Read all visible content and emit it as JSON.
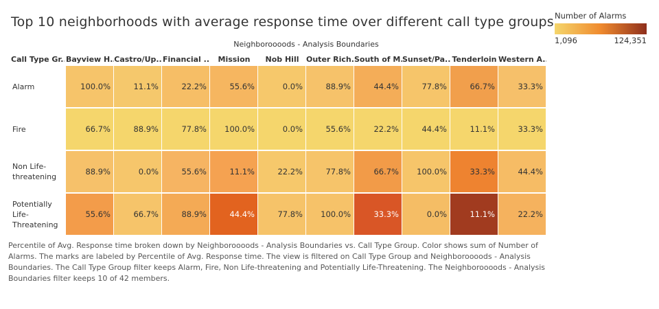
{
  "title": "Top 10 neighborhoods with average response time over different call type groups",
  "legend": {
    "title": "Number of Alarms",
    "min_label": "1,096",
    "max_label": "124,351"
  },
  "column_axis_title": "Neighboroooods - Analysis Boundaries",
  "row_header_title": "Call Type Gr..",
  "caption": "Percentile of Avg. Response time broken down by Neighboroooods - Analysis Boundaries vs. Call Type Group.  Color shows sum of Number of Alarms.  The marks are labeled by Percentile of Avg. Response time. The view is filtered on Call Type Group and Neighboroooods - Analysis Boundaries. The Call Type Group filter keeps Alarm, Fire, Non Life-threatening and Potentially Life-Threatening. The Neighboroooods - Analysis Boundaries filter keeps 10 of 42 members.",
  "chart_data": {
    "type": "heatmap",
    "title": "Top 10 neighborhoods with average response time over different call type groups",
    "xlabel": "Neighboroooods - Analysis Boundaries",
    "ylabel": "Call Type Gr..",
    "columns": [
      "Bayview H..",
      "Castro/Up..",
      "Financial ..",
      "Mission",
      "Nob Hill",
      "Outer Rich..",
      "South of M..",
      "Sunset/Pa..",
      "Tenderloin",
      "Western A.."
    ],
    "rows": [
      "Alarm",
      "Fire",
      "Non Life-threatening",
      "Potentially Life-Threatening"
    ],
    "row_display": [
      [
        "Alarm"
      ],
      [
        "Fire"
      ],
      [
        "Non Life-",
        "threatening"
      ],
      [
        "Potentially",
        "Life-",
        "Threatening"
      ]
    ],
    "labels": [
      [
        "100.0%",
        "11.1%",
        "22.2%",
        "55.6%",
        "0.0%",
        "88.9%",
        "44.4%",
        "77.8%",
        "66.7%",
        "33.3%"
      ],
      [
        "66.7%",
        "88.9%",
        "77.8%",
        "100.0%",
        "0.0%",
        "55.6%",
        "22.2%",
        "44.4%",
        "11.1%",
        "33.3%"
      ],
      [
        "88.9%",
        "0.0%",
        "55.6%",
        "11.1%",
        "22.2%",
        "77.8%",
        "66.7%",
        "100.0%",
        "33.3%",
        "44.4%"
      ],
      [
        "55.6%",
        "66.7%",
        "88.9%",
        "44.4%",
        "77.8%",
        "100.0%",
        "33.3%",
        "0.0%",
        "11.1%",
        "22.2%"
      ]
    ],
    "colors": [
      [
        "#f6c46a",
        "#f5c86c",
        "#f6be66",
        "#f6b660",
        "#f6c86b",
        "#f6c26a",
        "#f4ad58",
        "#f6c56a",
        "#f19f4c",
        "#f6c06a"
      ],
      [
        "#f5d66c",
        "#f5d66c",
        "#f5d66c",
        "#f5d66c",
        "#f5d66c",
        "#f5d66c",
        "#f5d66c",
        "#f5d66c",
        "#f5d66c",
        "#f5d66c"
      ],
      [
        "#f6c16a",
        "#f6c66b",
        "#f6b462",
        "#f5a251",
        "#f6c86b",
        "#f6c46a",
        "#f29b48",
        "#f6c56a",
        "#ee8330",
        "#f6bc65"
      ],
      [
        "#f39c4a",
        "#f6c46a",
        "#f4aa55",
        "#e2631f",
        "#f6c369",
        "#f6c269",
        "#d95626",
        "#f5bd65",
        "#a13b1f",
        "#f5b25e"
      ]
    ],
    "color_legend": {
      "title": "Number of Alarms",
      "min": 1096,
      "max": 124351,
      "colors": [
        "#f5d66c",
        "#ef8a2e",
        "#8e2f1c"
      ]
    },
    "dark_text_cells": [
      [
        3,
        3
      ],
      [
        3,
        6
      ],
      [
        3,
        8
      ]
    ]
  }
}
